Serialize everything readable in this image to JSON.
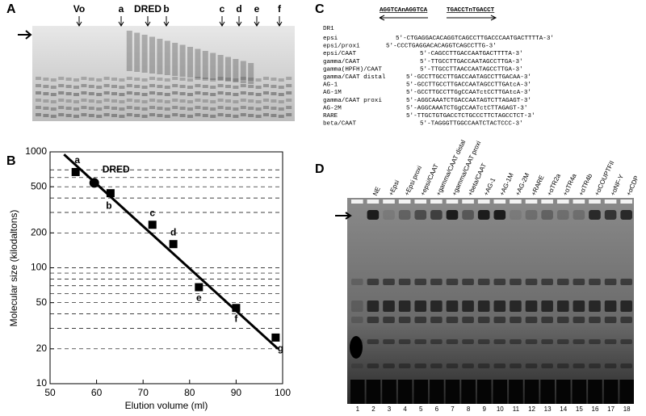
{
  "panel_labels": [
    "A",
    "B",
    "C",
    "D"
  ],
  "panel_a": {
    "markers": [
      "Vo",
      "a",
      "DRED",
      "b",
      "c",
      "d",
      "e",
      "f"
    ]
  },
  "chart_data": {
    "type": "scatter",
    "x_label": "Elution volume (ml)",
    "y_label": "Molecular size (kilodaltons)",
    "labels": [
      "a",
      "DRED",
      "b",
      "c",
      "d",
      "e",
      "f",
      "g"
    ],
    "markers": [
      "square",
      "circle",
      "square",
      "square",
      "square",
      "square",
      "square",
      "square"
    ],
    "x": [
      55.5,
      59.5,
      63,
      72,
      76.5,
      82,
      90,
      98.5
    ],
    "y": [
      670,
      540,
      440,
      235,
      160,
      68,
      45,
      25
    ],
    "fit_line": {
      "x": [
        53,
        99
      ],
      "y": [
        950,
        20
      ]
    },
    "xlim": [
      50,
      100
    ],
    "xticks": [
      50,
      60,
      70,
      80,
      90,
      100
    ],
    "ylim": [
      10,
      1000
    ],
    "yticks": [
      10,
      20,
      50,
      100,
      200,
      500,
      1000
    ],
    "y_log": true,
    "dashed_lines": [
      20,
      30,
      40,
      50,
      60,
      70,
      80,
      90,
      100,
      200,
      300,
      400,
      500,
      600,
      700
    ],
    "color": "#000000"
  },
  "panel_c": {
    "title": "DR1",
    "motif_left": "AGGTCAnAGGTCA",
    "motif_right": "TGACCTnTGACCT",
    "rows": [
      {
        "name": "epsi",
        "seq": "5'-CTGAGGACACAGGTCAGCCTTGACCCAATGACTTTTA-3'"
      },
      {
        "name": "epsi/proxi",
        "seq": "5'-CCCTGAGGACACAGGTCAGCCTTG-3'"
      },
      {
        "name": "epsi/CAAT",
        "seq": "5'-CAGCCTTGACCAATGACTTTTA-3'"
      },
      {
        "name": "gamma/CAAT",
        "seq": "5'-TTGCCTTGACCAATAGCCTTGA-3'"
      },
      {
        "name": "gamma(HPFH)/CAAT",
        "seq": "5'-TTGCCTTAACCAATAGCCTTGA-3'"
      },
      {
        "name": "gamma/CAAT distal",
        "seq": "5'-GCCTTGCCTTGACCAATAGCCTTGACAA-3'"
      },
      {
        "name": "AG-1",
        "seq": "5'-GCCTTGCCTTGACCAATAGCCTTGAtcA-3'"
      },
      {
        "name": "AG-1M",
        "seq": "5'-GCCTTGCCTTGgCCAATctCCTTGAtcA-3'"
      },
      {
        "name": "gamma/CAAT proxi",
        "seq": "5'-AGGCAAATCTGACCAATAGTCTTAGAGT-3'"
      },
      {
        "name": "AG-2M",
        "seq": "5'-AGGCAAATCTGgCCAATctCTTAGAGT-3'"
      },
      {
        "name": "RARE",
        "seq": "5'-TTGCTGTGACCTCTGCCCTTCTAGCCTCT-3'"
      },
      {
        "name": "beta/CAAT",
        "seq": "5'-TAGGGTTGGCCAATCTACTCCC-3'"
      }
    ]
  },
  "panel_d": {
    "lane_labels": [
      "NE",
      "+Epsi",
      "+Epsi proxi",
      "+epsi/CAAT",
      "+gamma/CAAT distal",
      "+gamma/CAAT proxi",
      "+beta/CAAT",
      "+AG-1",
      "+AG-1M",
      "+AG-2M",
      "+RARE",
      "+αTR2a",
      "+αTR4a",
      "+αTR4b",
      "+αCOUPTFII",
      "+αNF-Y",
      "+αCDP"
    ],
    "lane_numbers": [
      "1",
      "2",
      "3",
      "4",
      "5",
      "6",
      "7",
      "8",
      "9",
      "10",
      "11",
      "12",
      "13",
      "14",
      "15",
      "16",
      "17",
      "18"
    ]
  }
}
